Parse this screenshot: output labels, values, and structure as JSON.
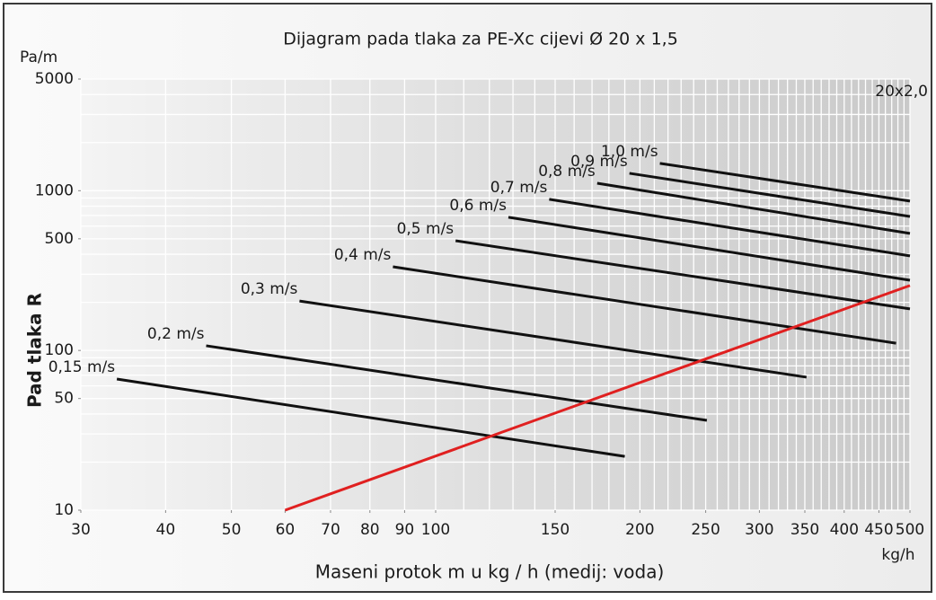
{
  "chart_data": {
    "type": "line",
    "title": "Dijagram pada tlaka za PE-Xc cijevi Ø 20 x 1,5",
    "y_unit": "Pa/m",
    "x_unit": "kg/h",
    "annotation": "20x2,0",
    "xlabel": "Maseni protok m u kg / h (medij: voda)",
    "ylabel": "Pad tlaka R",
    "xscale": "log",
    "yscale": "log",
    "xlim": [
      30,
      500
    ],
    "ylim": [
      10,
      5000
    ],
    "xticks": [
      30,
      40,
      50,
      60,
      70,
      80,
      90,
      100,
      150,
      200,
      250,
      300,
      350,
      400,
      450,
      500
    ],
    "yticks": [
      10,
      50,
      100,
      500,
      1000,
      5000
    ],
    "x_minor_grid": [
      30,
      40,
      50,
      60,
      70,
      80,
      90,
      100,
      110,
      120,
      130,
      140,
      150,
      160,
      170,
      180,
      190,
      200,
      210,
      220,
      230,
      240,
      250,
      260,
      270,
      280,
      290,
      300,
      310,
      320,
      330,
      340,
      350,
      360,
      370,
      380,
      390,
      400,
      410,
      420,
      430,
      440,
      450,
      460,
      470,
      480,
      490,
      500
    ],
    "y_minor_grid": [
      10,
      20,
      30,
      40,
      50,
      60,
      70,
      80,
      90,
      100,
      200,
      300,
      400,
      500,
      600,
      700,
      800,
      900,
      1000,
      2000,
      3000,
      4000,
      5000
    ],
    "grid": true,
    "series": [
      {
        "name": "0,15 m/s",
        "color": "#111111",
        "x": [
          33.9,
          190
        ],
        "values": [
          66.2,
          21.7
        ]
      },
      {
        "name": "0,2 m/s",
        "color": "#111111",
        "x": [
          45.9,
          251
        ],
        "values": [
          107,
          36.5
        ]
      },
      {
        "name": "0,3 m/s",
        "color": "#111111",
        "x": [
          63,
          352
        ],
        "values": [
          204,
          68
        ]
      },
      {
        "name": "0,4 m/s",
        "color": "#111111",
        "x": [
          86.5,
          477
        ],
        "values": [
          334,
          111
        ]
      },
      {
        "name": "0,5 m/s",
        "color": "#111111",
        "x": [
          107,
          500
        ],
        "values": [
          486,
          182
        ]
      },
      {
        "name": "0,6 m/s",
        "color": "#111111",
        "x": [
          128,
          500
        ],
        "values": [
          682,
          275
        ]
      },
      {
        "name": "0,7 m/s",
        "color": "#111111",
        "x": [
          147,
          500
        ],
        "values": [
          883,
          391
        ]
      },
      {
        "name": "0,8 m/s",
        "color": "#111111",
        "x": [
          173,
          500
        ],
        "values": [
          1114,
          540
        ]
      },
      {
        "name": "0,9 m/s",
        "color": "#111111",
        "x": [
          193,
          500
        ],
        "values": [
          1285,
          690
        ]
      },
      {
        "name": "1,0 m/s",
        "color": "#111111",
        "x": [
          214,
          500
        ],
        "values": [
          1483,
          861
        ]
      },
      {
        "color": "#e02020",
        "x": [
          60,
          500
        ],
        "values": [
          10,
          255
        ]
      }
    ]
  }
}
